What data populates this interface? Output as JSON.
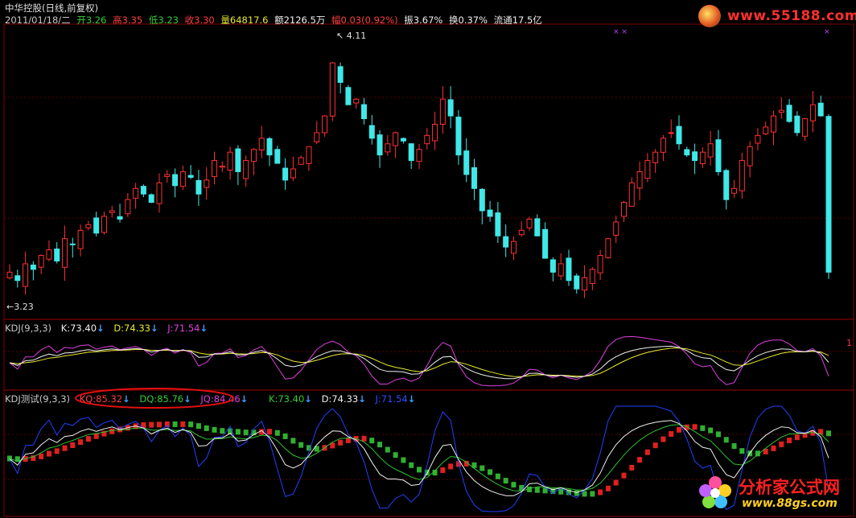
{
  "header": {
    "row1": "中华控股(日线,前复权)",
    "row2": {
      "date": "2011/01/18/二",
      "open_label": "开",
      "open": "3.26",
      "high_label": "高",
      "high": "3.35",
      "low_label": "低",
      "low": "3.23",
      "close_label": "收",
      "close": "3.30",
      "vol_label": "量",
      "vol": "64817.6",
      "amount_label": "额",
      "amount": "2126.5万",
      "change_label": "幅",
      "change": "0.03(0.92%)",
      "amp_label": "振",
      "amp": "3.67%",
      "turnover_label": "换",
      "turnover": "0.37%",
      "float_label": "流通",
      "float": "17.5亿"
    }
  },
  "price_labels": {
    "high": "4.11",
    "low": "3.23"
  },
  "kdj_panel": {
    "name": "KDJ(9,3,3)",
    "k": "K:73.40",
    "d": "D:74.33",
    "j": "J:71.54",
    "scale": "1"
  },
  "kdj2_panel": {
    "name": "KDJ测试(9,3,3)",
    "kq": "KQ:85.32",
    "dq": "DQ:85.76",
    "jq": "JQ:84.46",
    "k": "K:73.40",
    "d": "D:74.33",
    "j": "J:71.54"
  },
  "logo_top": {
    "text": "www.55188.com"
  },
  "logo_bottom": {
    "title": "分析家公式网",
    "url": "www.88gs.com"
  },
  "colors": {
    "up": "#ff3030",
    "down": "#40e8e8",
    "k_line": "#f0f0f0",
    "d_line": "#e8e830",
    "j_line": "#e040e0",
    "j2_line": "#2040ff",
    "grid": "#800000",
    "bar_up": "#e02020",
    "bar_down": "#30b030"
  },
  "chart_data": {
    "type": "candlestick",
    "close_series": [
      3.3,
      3.27,
      3.33,
      3.31,
      3.36,
      3.38,
      3.34,
      3.42,
      3.4,
      3.45,
      3.47,
      3.44,
      3.5,
      3.52,
      3.49,
      3.56,
      3.6,
      3.58,
      3.55,
      3.62,
      3.65,
      3.61,
      3.66,
      3.64,
      3.58,
      3.63,
      3.7,
      3.68,
      3.73,
      3.66,
      3.7,
      3.74,
      3.78,
      3.72,
      3.69,
      3.63,
      3.67,
      3.71,
      3.75,
      3.8,
      3.86,
      4.05,
      3.98,
      3.9,
      3.92,
      3.85,
      3.78,
      3.72,
      3.76,
      3.8,
      3.77,
      3.7,
      3.74,
      3.79,
      3.83,
      3.92,
      3.86,
      3.72,
      3.65,
      3.6,
      3.52,
      3.5,
      3.43,
      3.39,
      3.41,
      3.45,
      3.49,
      3.43,
      3.35,
      3.3,
      3.33,
      3.27,
      3.24,
      3.28,
      3.31,
      3.36,
      3.42,
      3.48,
      3.55,
      3.62,
      3.66,
      3.7,
      3.73,
      3.78,
      3.8,
      3.76,
      3.72,
      3.7,
      3.73,
      3.76,
      3.66,
      3.56,
      3.6,
      3.7,
      3.75,
      3.79,
      3.82,
      3.86,
      3.88,
      3.84,
      3.8,
      3.85,
      3.9,
      3.86,
      3.3
    ]
  }
}
